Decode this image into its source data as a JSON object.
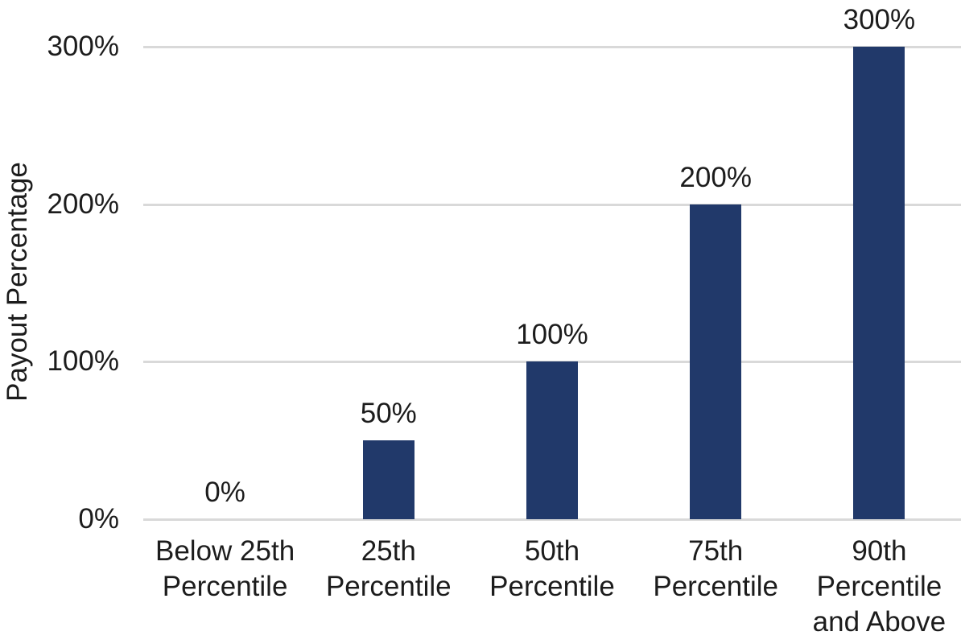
{
  "chart_data": {
    "type": "bar",
    "title": "",
    "categories": [
      "Below 25th Percentile",
      "25th Percentile",
      "50th Percentile",
      "75th Percentile",
      "90th Percentile and Above"
    ],
    "values": [
      0,
      50,
      100,
      200,
      300
    ],
    "data_labels": [
      "0%",
      "50%",
      "100%",
      "200%",
      "300%"
    ],
    "xlabel": "",
    "ylabel": "Payout Percentage",
    "ylim": [
      0,
      300
    ],
    "y_ticks": [
      0,
      100,
      200,
      300
    ],
    "y_tick_labels": [
      "0%",
      "100%",
      "200%",
      "300%"
    ],
    "grid": true,
    "legend": false,
    "bar_color": "#21396a",
    "gridline_color": "#d9d9d9",
    "text_color": "#1c1c1c",
    "background_color": "#ffffff"
  }
}
